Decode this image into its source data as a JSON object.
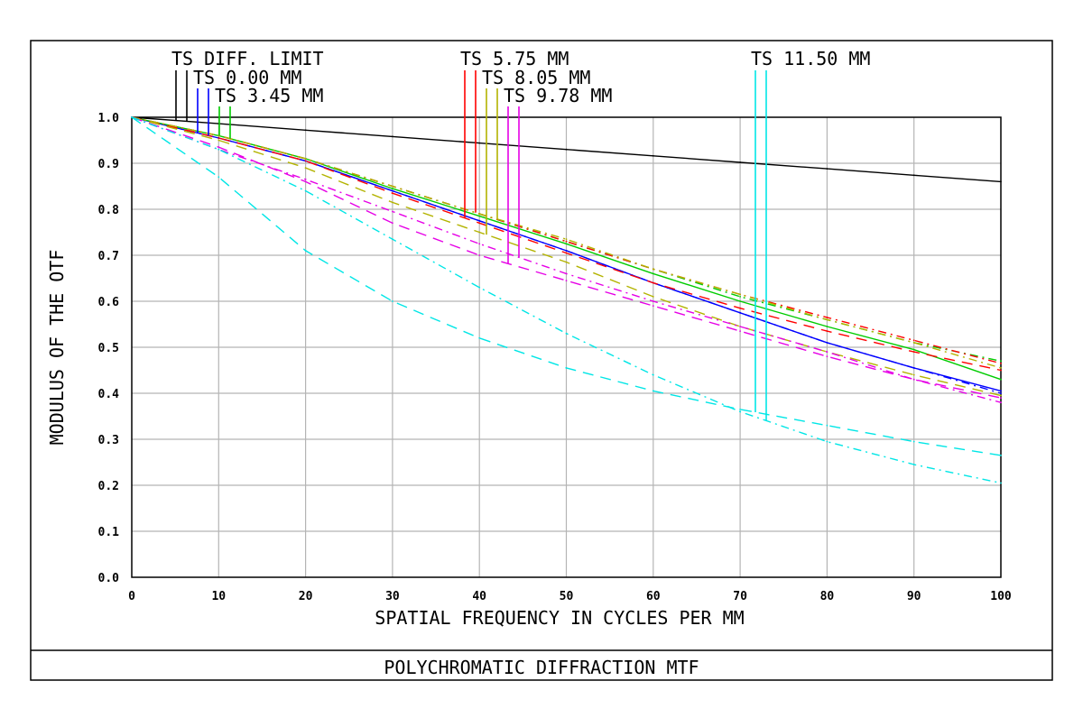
{
  "chart_data": {
    "type": "line",
    "title": "POLYCHROMATIC DIFFRACTION MTF",
    "xlabel": "SPATIAL FREQUENCY IN CYCLES PER MM",
    "ylabel": "MODULUS OF THE OTF",
    "xlim": [
      0,
      100
    ],
    "ylim": [
      0,
      1
    ],
    "x_ticks": [
      "0",
      "10",
      "20",
      "30",
      "40",
      "50",
      "60",
      "70",
      "80",
      "90",
      "100"
    ],
    "y_ticks": [
      "0.0",
      "0.1",
      "0.2",
      "0.3",
      "0.4",
      "0.5",
      "0.6",
      "0.7",
      "0.8",
      "0.9",
      "1.0"
    ],
    "grid": true,
    "x": [
      0,
      10,
      20,
      30,
      40,
      50,
      60,
      70,
      80,
      90,
      100
    ],
    "legend": [
      {
        "label": "TS DIFF. LIMIT",
        "color": "#000000"
      },
      {
        "label": "TS 0.00 MM",
        "color": "#0000ff"
      },
      {
        "label": "TS 3.45 MM",
        "color": "#00cc00"
      },
      {
        "label": "TS 5.75 MM",
        "color": "#ff0000"
      },
      {
        "label": "TS 8.05 MM",
        "color": "#b3b300"
      },
      {
        "label": "TS 9.78 MM",
        "color": "#e600e6"
      },
      {
        "label": "TS 11.50 MM",
        "color": "#00e6e6"
      }
    ],
    "series": [
      {
        "field": "TS DIFF. LIMIT",
        "orient": "T",
        "color": "#000000",
        "dash": "",
        "values": [
          1.0,
          0.986,
          0.972,
          0.958,
          0.944,
          0.93,
          0.916,
          0.902,
          0.888,
          0.874,
          0.86
        ]
      },
      {
        "field": "TS 0.00 MM",
        "orient": "T",
        "color": "#0000ff",
        "dash": "",
        "values": [
          1.0,
          0.955,
          0.905,
          0.84,
          0.775,
          0.71,
          0.64,
          0.575,
          0.51,
          0.455,
          0.405
        ]
      },
      {
        "field": "TS 0.00 MM",
        "orient": "S",
        "color": "#0000ff",
        "dash": "9 5 2 5",
        "values": [
          1.0,
          0.955,
          0.905,
          0.84,
          0.775,
          0.71,
          0.64,
          0.575,
          0.51,
          0.455,
          0.4
        ]
      },
      {
        "field": "TS 3.45 MM",
        "orient": "T",
        "color": "#00cc00",
        "dash": "",
        "values": [
          1.0,
          0.96,
          0.91,
          0.845,
          0.785,
          0.725,
          0.66,
          0.6,
          0.545,
          0.495,
          0.43
        ]
      },
      {
        "field": "TS 3.45 MM",
        "orient": "S",
        "color": "#00cc00",
        "dash": "9 5 2 5",
        "values": [
          1.0,
          0.96,
          0.91,
          0.85,
          0.79,
          0.73,
          0.67,
          0.61,
          0.56,
          0.51,
          0.47
        ]
      },
      {
        "field": "TS 5.75 MM",
        "orient": "T",
        "color": "#ff0000",
        "dash": "12 8",
        "values": [
          1.0,
          0.955,
          0.905,
          0.835,
          0.77,
          0.705,
          0.64,
          0.585,
          0.535,
          0.49,
          0.45
        ]
      },
      {
        "field": "TS 5.75 MM",
        "orient": "S",
        "color": "#ff0000",
        "dash": "9 5 2 5",
        "values": [
          1.0,
          0.96,
          0.91,
          0.85,
          0.79,
          0.73,
          0.67,
          0.615,
          0.565,
          0.515,
          0.465
        ]
      },
      {
        "field": "TS 8.05 MM",
        "orient": "T",
        "color": "#b3b300",
        "dash": "12 8",
        "values": [
          1.0,
          0.95,
          0.89,
          0.815,
          0.75,
          0.685,
          0.61,
          0.545,
          0.49,
          0.44,
          0.395
        ]
      },
      {
        "field": "TS 8.05 MM",
        "orient": "S",
        "color": "#b3b300",
        "dash": "9 5 2 5",
        "values": [
          1.0,
          0.96,
          0.91,
          0.85,
          0.79,
          0.735,
          0.67,
          0.615,
          0.56,
          0.51,
          0.455
        ]
      },
      {
        "field": "TS 9.78 MM",
        "orient": "T",
        "color": "#e600e6",
        "dash": "12 8",
        "values": [
          1.0,
          0.935,
          0.86,
          0.77,
          0.7,
          0.645,
          0.59,
          0.535,
          0.48,
          0.43,
          0.39
        ]
      },
      {
        "field": "TS 9.78 MM",
        "orient": "S",
        "color": "#e600e6",
        "dash": "9 5 2 5",
        "values": [
          1.0,
          0.93,
          0.865,
          0.795,
          0.725,
          0.66,
          0.6,
          0.545,
          0.49,
          0.43,
          0.38
        ]
      },
      {
        "field": "TS 11.50 MM",
        "orient": "T",
        "color": "#00e6e6",
        "dash": "12 8",
        "values": [
          1.0,
          0.87,
          0.71,
          0.6,
          0.52,
          0.455,
          0.405,
          0.365,
          0.33,
          0.295,
          0.265
        ]
      },
      {
        "field": "TS 11.50 MM",
        "orient": "S",
        "color": "#00e6e6",
        "dash": "9 5 2 5",
        "values": [
          1.0,
          0.93,
          0.84,
          0.735,
          0.63,
          0.53,
          0.44,
          0.36,
          0.295,
          0.245,
          0.205
        ]
      }
    ]
  }
}
